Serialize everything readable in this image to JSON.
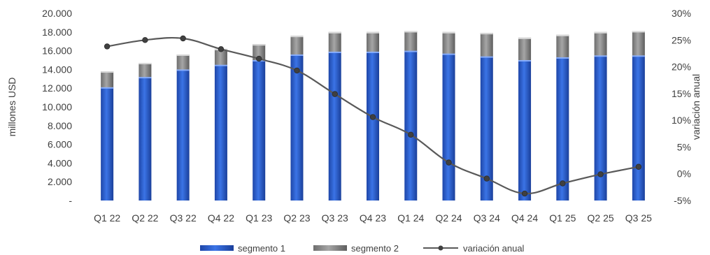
{
  "chart_data": {
    "type": "bar",
    "stacked": true,
    "categories": [
      "Q1 22",
      "Q2 22",
      "Q3 22",
      "Q4 22",
      "Q1 23",
      "Q2 23",
      "Q3 23",
      "Q4 23",
      "Q1 24",
      "Q2 24",
      "Q3 24",
      "Q4 24",
      "Q1 25",
      "Q2 25",
      "Q3 25"
    ],
    "series": [
      {
        "name": "segmento 1",
        "type": "bar",
        "axis": "left",
        "color": "#2f5fd0",
        "values": [
          12100,
          13200,
          14000,
          14500,
          15000,
          15600,
          15900,
          15900,
          16000,
          15700,
          15400,
          15000,
          15300,
          15500,
          15500
        ]
      },
      {
        "name": "segmento 2",
        "type": "bar",
        "axis": "left",
        "color": "#8a8a8a",
        "values": [
          1700,
          1500,
          1600,
          1700,
          1700,
          2000,
          2100,
          2100,
          2100,
          2300,
          2500,
          2400,
          2400,
          2500,
          2600
        ]
      },
      {
        "name": "variación anual",
        "type": "line",
        "axis": "right",
        "color": "#595959",
        "values": [
          23.8,
          25.0,
          25.3,
          23.3,
          21.5,
          19.3,
          14.9,
          10.6,
          7.3,
          2.1,
          -0.9,
          -3.7,
          -1.8,
          -0.1,
          1.3
        ]
      }
    ],
    "y_left": {
      "label": "millones USD",
      "min": 0,
      "max": 20000,
      "ticks": [
        "-",
        "2.000",
        "4.000",
        "6.000",
        "8.000",
        "10.000",
        "12.000",
        "14.000",
        "16.000",
        "18.000",
        "20.000"
      ]
    },
    "y_right": {
      "label": "variación anual",
      "min": -5,
      "max": 30,
      "ticks": [
        "-5%",
        "0%",
        "5%",
        "10%",
        "15%",
        "20%",
        "25%",
        "30%"
      ]
    },
    "grid": false,
    "legend_position": "bottom"
  }
}
